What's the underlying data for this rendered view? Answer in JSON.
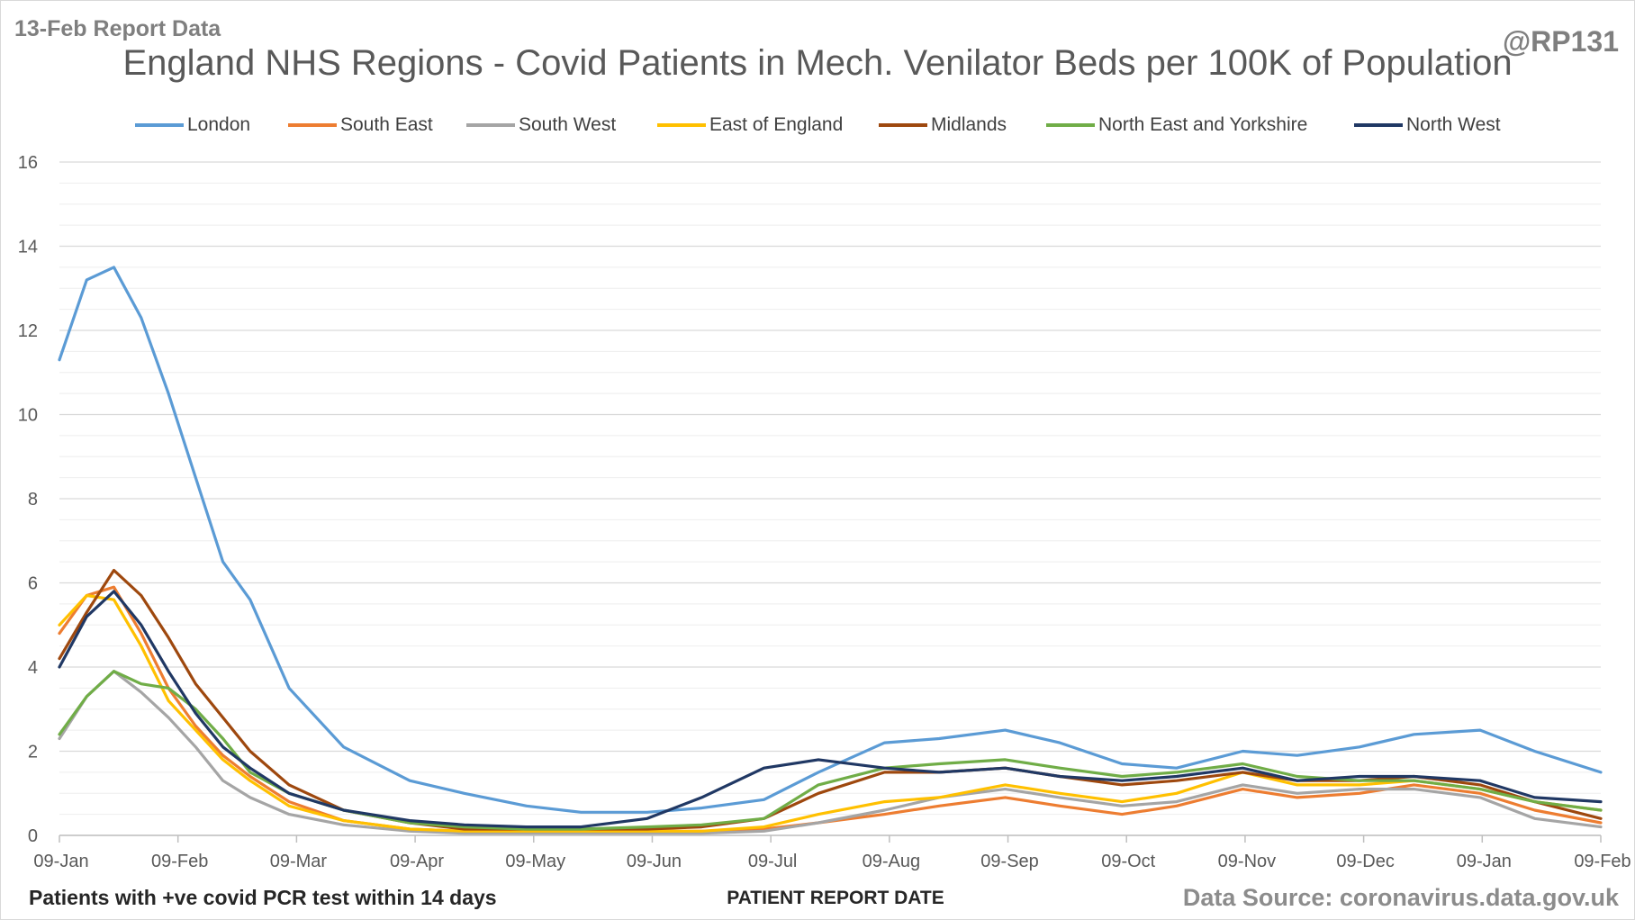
{
  "header": {
    "report_label": "13-Feb Report Data",
    "handle": "@RP131",
    "title": "England NHS Regions - Covid Patients in Mech. Venilator Beds per 100K of Population"
  },
  "footer": {
    "footnote": "Patients with +ve covid PCR test within 14 days",
    "x_axis_title": "PATIENT REPORT DATE",
    "source": "Data Source: coronavirus.data.gov.uk"
  },
  "chart_data": {
    "type": "line",
    "title": "England NHS Regions - Covid Patients in Mech. Venilator Beds per 100K of Population",
    "xlabel": "PATIENT REPORT DATE",
    "ylabel": "",
    "x_ticks": [
      "09-Jan",
      "09-Feb",
      "09-Mar",
      "09-Apr",
      "09-May",
      "09-Jun",
      "09-Jul",
      "09-Aug",
      "09-Sep",
      "09-Oct",
      "09-Nov",
      "09-Dec",
      "09-Jan",
      "09-Feb"
    ],
    "x_range": [
      "2021-01-09",
      "2022-02-09"
    ],
    "ylim": [
      0,
      16
    ],
    "y_ticks": [
      0,
      2,
      4,
      6,
      8,
      10,
      12,
      14,
      16
    ],
    "y_minor_step": 0.5,
    "grid": true,
    "legend_position": "top",
    "x": [
      "2021-01-09",
      "2021-01-16",
      "2021-01-23",
      "2021-01-30",
      "2021-02-06",
      "2021-02-13",
      "2021-02-20",
      "2021-02-27",
      "2021-03-09",
      "2021-03-23",
      "2021-04-09",
      "2021-04-23",
      "2021-05-09",
      "2021-05-23",
      "2021-06-09",
      "2021-06-23",
      "2021-07-09",
      "2021-07-23",
      "2021-08-09",
      "2021-08-23",
      "2021-09-09",
      "2021-09-23",
      "2021-10-09",
      "2021-10-23",
      "2021-11-09",
      "2021-11-23",
      "2021-12-09",
      "2021-12-23",
      "2022-01-09",
      "2022-01-23",
      "2022-02-09"
    ],
    "series": [
      {
        "name": "London",
        "color": "#5b9bd5",
        "values": [
          11.3,
          13.2,
          13.5,
          12.3,
          10.5,
          8.5,
          6.5,
          5.6,
          3.5,
          2.1,
          1.3,
          1.0,
          0.7,
          0.55,
          0.55,
          0.65,
          0.85,
          1.5,
          2.2,
          2.3,
          2.5,
          2.2,
          1.7,
          1.6,
          2.0,
          1.9,
          2.1,
          2.4,
          2.5,
          2.0,
          1.5
        ]
      },
      {
        "name": "South East",
        "color": "#ed7d31",
        "values": [
          4.8,
          5.7,
          5.9,
          4.8,
          3.5,
          2.6,
          1.9,
          1.4,
          0.8,
          0.35,
          0.15,
          0.1,
          0.1,
          0.1,
          0.1,
          0.1,
          0.15,
          0.3,
          0.5,
          0.7,
          0.9,
          0.7,
          0.5,
          0.7,
          1.1,
          0.9,
          1.0,
          1.2,
          1.0,
          0.6,
          0.3
        ]
      },
      {
        "name": "South West",
        "color": "#a5a5a5",
        "values": [
          2.3,
          3.3,
          3.9,
          3.4,
          2.8,
          2.1,
          1.3,
          0.9,
          0.5,
          0.25,
          0.1,
          0.05,
          0.05,
          0.05,
          0.05,
          0.05,
          0.1,
          0.3,
          0.6,
          0.9,
          1.1,
          0.9,
          0.7,
          0.8,
          1.2,
          1.0,
          1.1,
          1.1,
          0.9,
          0.4,
          0.2
        ]
      },
      {
        "name": "East of England",
        "color": "#ffc000",
        "values": [
          5.0,
          5.7,
          5.6,
          4.5,
          3.2,
          2.5,
          1.8,
          1.3,
          0.7,
          0.35,
          0.15,
          0.1,
          0.1,
          0.1,
          0.1,
          0.1,
          0.2,
          0.5,
          0.8,
          0.9,
          1.2,
          1.0,
          0.8,
          1.0,
          1.5,
          1.2,
          1.2,
          1.3,
          1.1,
          0.8,
          0.6
        ]
      },
      {
        "name": "Midlands",
        "color": "#9e480e",
        "values": [
          4.2,
          5.3,
          6.3,
          5.7,
          4.7,
          3.6,
          2.8,
          2.0,
          1.2,
          0.6,
          0.3,
          0.15,
          0.15,
          0.15,
          0.15,
          0.2,
          0.4,
          1.0,
          1.5,
          1.5,
          1.6,
          1.4,
          1.2,
          1.3,
          1.5,
          1.3,
          1.3,
          1.4,
          1.2,
          0.8,
          0.4
        ]
      },
      {
        "name": "North East and Yorkshire",
        "color": "#70ad47",
        "values": [
          2.4,
          3.3,
          3.9,
          3.6,
          3.5,
          3.0,
          2.3,
          1.5,
          1.0,
          0.6,
          0.3,
          0.2,
          0.15,
          0.15,
          0.2,
          0.25,
          0.4,
          1.2,
          1.6,
          1.7,
          1.8,
          1.6,
          1.4,
          1.5,
          1.7,
          1.4,
          1.3,
          1.3,
          1.1,
          0.8,
          0.6
        ]
      },
      {
        "name": "North West",
        "color": "#203864",
        "values": [
          4.0,
          5.2,
          5.8,
          5.0,
          3.9,
          2.9,
          2.1,
          1.6,
          1.0,
          0.6,
          0.35,
          0.25,
          0.2,
          0.2,
          0.4,
          0.9,
          1.6,
          1.8,
          1.6,
          1.5,
          1.6,
          1.4,
          1.3,
          1.4,
          1.6,
          1.3,
          1.4,
          1.4,
          1.3,
          0.9,
          0.8
        ]
      }
    ]
  }
}
